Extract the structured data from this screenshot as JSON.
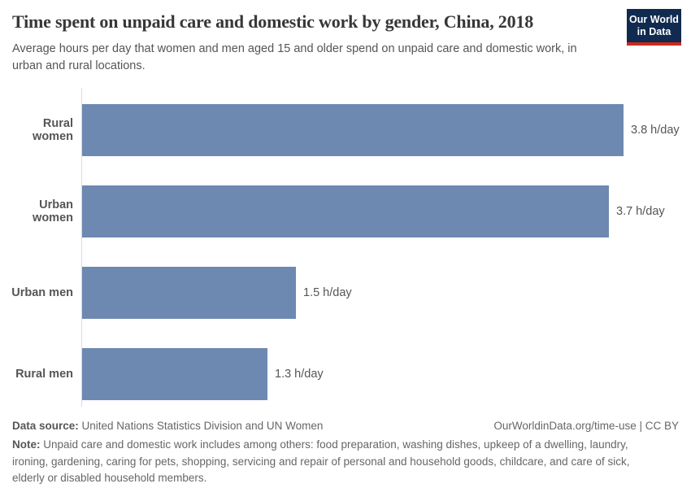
{
  "header": {
    "title": "Time spent on unpaid care and domestic work by gender, China, 2018",
    "subtitle": "Average hours per day that women and men aged 15 and older spend on unpaid care and domestic work, in urban and rural locations.",
    "logo_line1": "Our World",
    "logo_line2": "in Data"
  },
  "chart_data": {
    "type": "bar",
    "orientation": "horizontal",
    "title": "Time spent on unpaid care and domestic work by gender, China, 2018",
    "categories": [
      "Rural women",
      "Urban women",
      "Urban men",
      "Rural men"
    ],
    "values": [
      3.8,
      3.7,
      1.5,
      1.3
    ],
    "value_labels": [
      "3.8 h/day",
      "3.7 h/day",
      "1.5 h/day",
      "1.3 h/day"
    ],
    "unit": "h/day",
    "xlabel": "",
    "ylabel": "",
    "xlim": [
      0,
      3.8
    ],
    "grid": false,
    "legend": false,
    "bar_color": "#6d89b1"
  },
  "footer": {
    "datasource_label": "Data source:",
    "datasource_text": " United Nations Statistics Division and UN Women",
    "attribution": "OurWorldinData.org/time-use | CC BY",
    "note_label": "Note:",
    "note_text": " Unpaid care and domestic work includes among others: food preparation, washing dishes, upkeep of a dwelling, laundry, ironing, gardening, caring for pets, shopping, servicing and repair of personal and household goods, childcare, and care of sick, elderly or disabled household members."
  },
  "colors": {
    "bar": "#6d89b1",
    "title_text": "#373737",
    "body_text": "#555555",
    "footer_text": "#666666",
    "axis_line": "#d9dbe3",
    "logo_bg": "#102a50",
    "logo_accent_red": "#cd2a1d"
  }
}
